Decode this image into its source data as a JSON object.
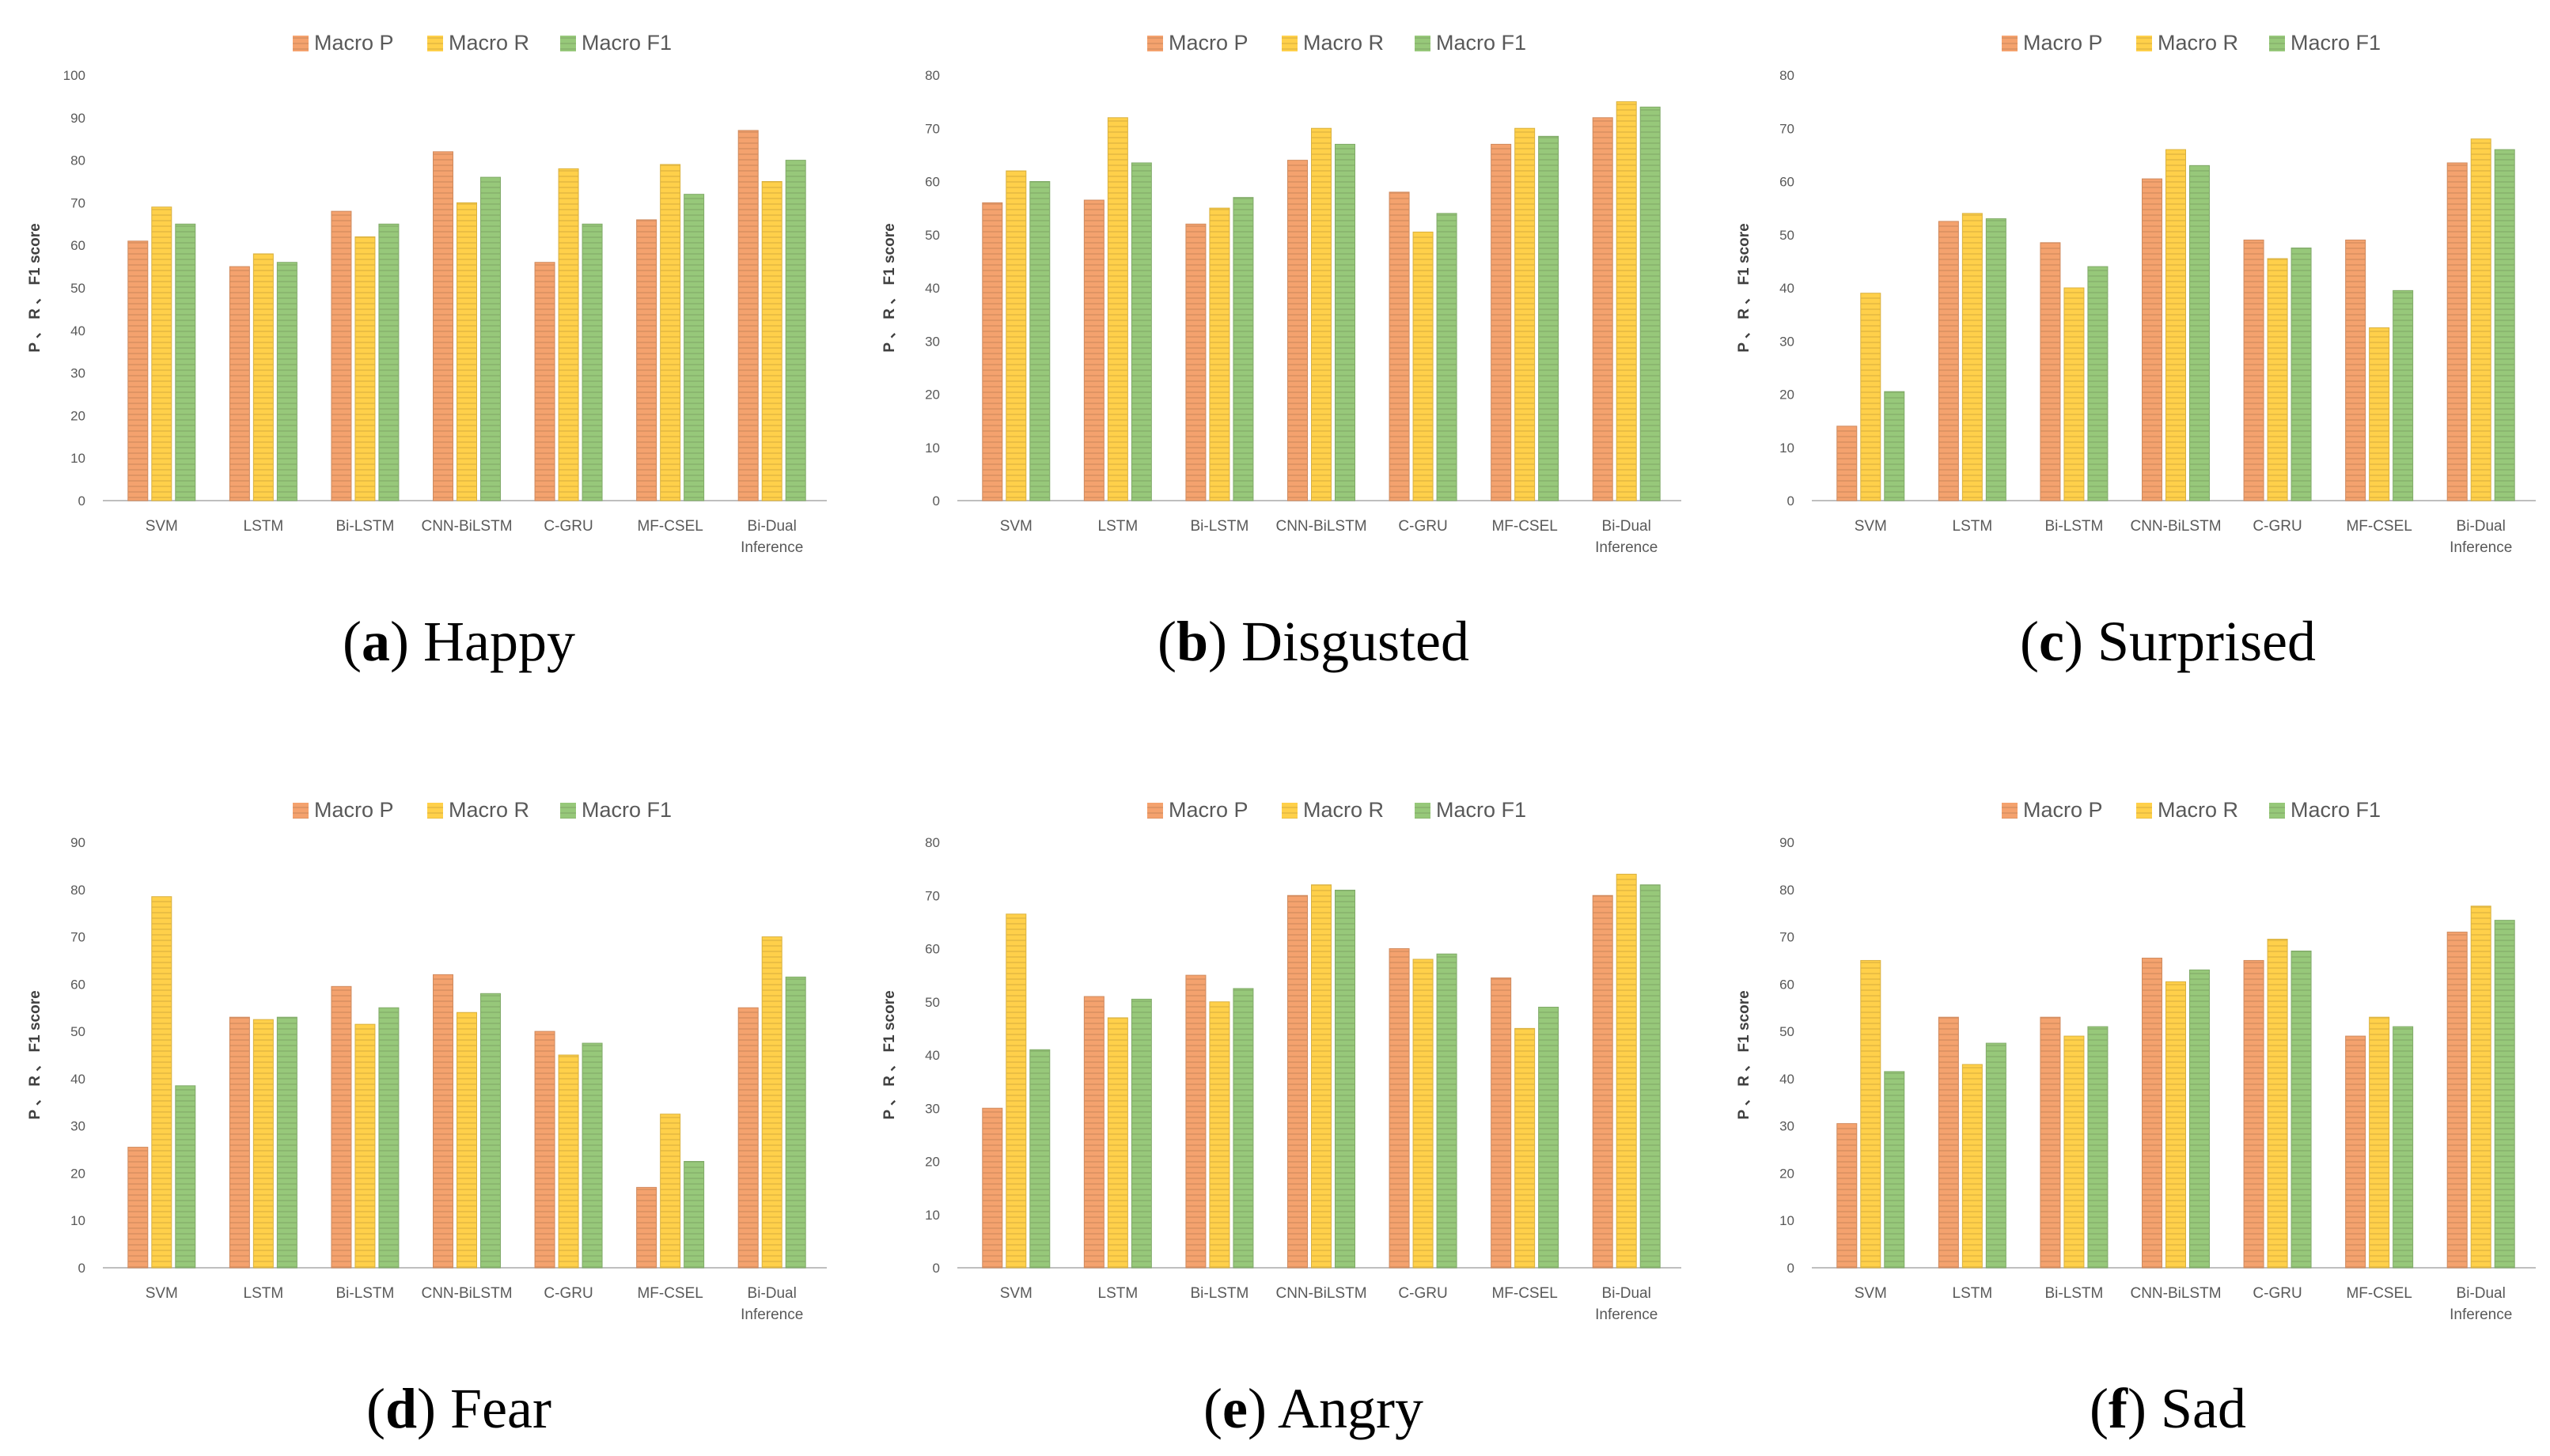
{
  "chart_data": [
    {
      "type": "bar",
      "panel_label": "a",
      "caption": "Happy",
      "categories": [
        [
          "SVM"
        ],
        [
          "LSTM"
        ],
        [
          "Bi-LSTM"
        ],
        [
          "CNN-BiLSTM"
        ],
        [
          "C-GRU"
        ],
        [
          "MF-CSEL"
        ],
        [
          "Bi-Dual",
          "Inference"
        ]
      ],
      "series": [
        {
          "name": "Macro P",
          "color": "#F4A26E",
          "values": [
            61,
            55,
            68,
            82,
            56,
            66,
            87
          ]
        },
        {
          "name": "Macro R",
          "color": "#FFD04A",
          "values": [
            69,
            58,
            62,
            70,
            78,
            79,
            75
          ]
        },
        {
          "name": "Macro F1",
          "color": "#97C87A",
          "values": [
            65,
            56,
            65,
            76,
            65,
            72,
            80
          ]
        }
      ],
      "ylabel": "P 、 R 、 F1 score",
      "ylim": [
        0,
        100
      ],
      "yticks": [
        0,
        10,
        20,
        30,
        40,
        50,
        60,
        70,
        80,
        90,
        100
      ],
      "legend": "top",
      "grid": false
    },
    {
      "type": "bar",
      "panel_label": "b",
      "caption": "Disgusted",
      "categories": [
        [
          "SVM"
        ],
        [
          "LSTM"
        ],
        [
          "Bi-LSTM"
        ],
        [
          "CNN-BiLSTM"
        ],
        [
          "C-GRU"
        ],
        [
          "MF-CSEL"
        ],
        [
          "Bi-Dual",
          "Inference"
        ]
      ],
      "series": [
        {
          "name": "Macro P",
          "color": "#F4A26E",
          "values": [
            56,
            56.5,
            52,
            64,
            58,
            67,
            72
          ]
        },
        {
          "name": "Macro R",
          "color": "#FFD04A",
          "values": [
            62,
            72,
            55,
            70,
            50.5,
            70,
            75
          ]
        },
        {
          "name": "Macro F1",
          "color": "#97C87A",
          "values": [
            60,
            63.5,
            57,
            67,
            54,
            68.5,
            74
          ]
        }
      ],
      "ylabel": "P 、 R 、 F1 score",
      "ylim": [
        0,
        80
      ],
      "yticks": [
        0,
        10,
        20,
        30,
        40,
        50,
        60,
        70,
        80
      ],
      "legend": "top",
      "grid": false
    },
    {
      "type": "bar",
      "panel_label": "c",
      "caption": "Surprised",
      "categories": [
        [
          "SVM"
        ],
        [
          "LSTM"
        ],
        [
          "Bi-LSTM"
        ],
        [
          "CNN-BiLSTM"
        ],
        [
          "C-GRU"
        ],
        [
          "MF-CSEL"
        ],
        [
          "Bi-Dual",
          "Inference"
        ]
      ],
      "series": [
        {
          "name": "Macro P",
          "color": "#F4A26E",
          "values": [
            14,
            52.5,
            48.5,
            60.5,
            49,
            49,
            63.5
          ]
        },
        {
          "name": "Macro R",
          "color": "#FFD04A",
          "values": [
            39,
            54,
            40,
            66,
            45.5,
            32.5,
            68
          ]
        },
        {
          "name": "Macro F1",
          "color": "#97C87A",
          "values": [
            20.5,
            53,
            44,
            63,
            47.5,
            39.5,
            66
          ]
        }
      ],
      "ylabel": "P 、 R 、 F1 score",
      "ylim": [
        0,
        80
      ],
      "yticks": [
        0,
        10,
        20,
        30,
        40,
        50,
        60,
        70,
        80
      ],
      "legend": "top",
      "grid": false
    },
    {
      "type": "bar",
      "panel_label": "d",
      "caption": "Fear",
      "categories": [
        [
          "SVM"
        ],
        [
          "LSTM"
        ],
        [
          "Bi-LSTM"
        ],
        [
          "CNN-BiLSTM"
        ],
        [
          "C-GRU"
        ],
        [
          "MF-CSEL"
        ],
        [
          "Bi-Dual",
          "Inference"
        ]
      ],
      "series": [
        {
          "name": "Macro P",
          "color": "#F4A26E",
          "values": [
            25.5,
            53,
            59.5,
            62,
            50,
            17,
            55
          ]
        },
        {
          "name": "Macro R",
          "color": "#FFD04A",
          "values": [
            78.5,
            52.5,
            51.5,
            54,
            45,
            32.5,
            70
          ]
        },
        {
          "name": "Macro F1",
          "color": "#97C87A",
          "values": [
            38.5,
            53,
            55,
            58,
            47.5,
            22.5,
            61.5
          ]
        }
      ],
      "ylabel": "P 、 R 、 F1 score",
      "ylim": [
        0,
        90
      ],
      "yticks": [
        0,
        10,
        20,
        30,
        40,
        50,
        60,
        70,
        80,
        90
      ],
      "legend": "top",
      "grid": false
    },
    {
      "type": "bar",
      "panel_label": "e",
      "caption": "Angry",
      "categories": [
        [
          "SVM"
        ],
        [
          "LSTM"
        ],
        [
          "Bi-LSTM"
        ],
        [
          "CNN-BiLSTM"
        ],
        [
          "C-GRU"
        ],
        [
          "MF-CSEL"
        ],
        [
          "Bi-Dual",
          "Inference"
        ]
      ],
      "series": [
        {
          "name": "Macro P",
          "color": "#F4A26E",
          "values": [
            30,
            51,
            55,
            70,
            60,
            54.5,
            70
          ]
        },
        {
          "name": "Macro R",
          "color": "#FFD04A",
          "values": [
            66.5,
            47,
            50,
            72,
            58,
            45,
            74
          ]
        },
        {
          "name": "Macro F1",
          "color": "#97C87A",
          "values": [
            41,
            50.5,
            52.5,
            71,
            59,
            49,
            72
          ]
        }
      ],
      "ylabel": "P 、 R 、 F1 score",
      "ylim": [
        0,
        80
      ],
      "yticks": [
        0,
        10,
        20,
        30,
        40,
        50,
        60,
        70,
        80
      ],
      "legend": "top",
      "grid": false
    },
    {
      "type": "bar",
      "panel_label": "f",
      "caption": "Sad",
      "categories": [
        [
          "SVM"
        ],
        [
          "LSTM"
        ],
        [
          "Bi-LSTM"
        ],
        [
          "CNN-BiLSTM"
        ],
        [
          "C-GRU"
        ],
        [
          "MF-CSEL"
        ],
        [
          "Bi-Dual",
          "Inference"
        ]
      ],
      "series": [
        {
          "name": "Macro P",
          "color": "#F4A26E",
          "values": [
            30.5,
            53,
            53,
            65.5,
            65,
            49,
            71
          ]
        },
        {
          "name": "Macro R",
          "color": "#FFD04A",
          "values": [
            65,
            43,
            49,
            60.5,
            69.5,
            53,
            76.5
          ]
        },
        {
          "name": "Macro F1",
          "color": "#97C87A",
          "values": [
            41.5,
            47.5,
            51,
            63,
            67,
            51,
            73.5
          ]
        }
      ],
      "ylabel": "P 、 R 、 F1 score",
      "ylim": [
        0,
        90
      ],
      "yticks": [
        0,
        10,
        20,
        30,
        40,
        50,
        60,
        70,
        80,
        90
      ],
      "legend": "top",
      "grid": false
    }
  ]
}
